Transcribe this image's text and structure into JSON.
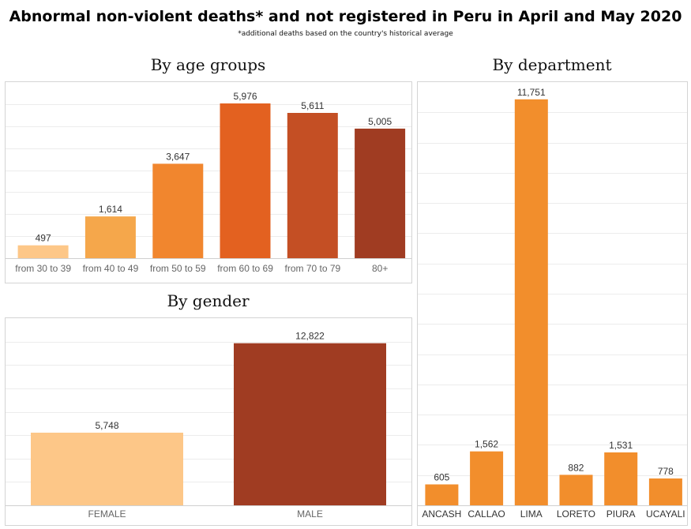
{
  "title": "Abnormal non-violent deaths* and not registered in Peru in April and May 2020",
  "subtitle": "*additional deaths based on the country's historical average",
  "chart_data": [
    {
      "id": "age",
      "type": "bar",
      "title": "By age groups",
      "categories": [
        "from 30 to 39",
        "from 40 to 49",
        "from 50 to 59",
        "from 60 to 69",
        "from 70 to 79",
        "80+"
      ],
      "values": [
        497,
        1614,
        3647,
        5976,
        5611,
        5005
      ],
      "value_labels": [
        "497",
        "1,614",
        "3,647",
        "5,976",
        "5,611",
        "5,005"
      ],
      "colors": [
        "#fdc788",
        "#f5a74b",
        "#f1862e",
        "#e36120",
        "#c44f24",
        "#a03c22"
      ],
      "ylim": [
        0,
        6800
      ],
      "grid": true
    },
    {
      "id": "gender",
      "type": "bar",
      "title": "By gender",
      "categories": [
        "FEMALE",
        "MALE"
      ],
      "values": [
        5748,
        12822
      ],
      "value_labels": [
        "5,748",
        "12,822"
      ],
      "colors": [
        "#fdc788",
        "#a03c22"
      ],
      "ylim": [
        0,
        14800
      ],
      "grid": true
    },
    {
      "id": "department",
      "type": "bar",
      "title": "By department",
      "categories": [
        "ANCASH",
        "CALLAO",
        "LIMA",
        "LORETO",
        "PIURA",
        "UCAYALI"
      ],
      "values": [
        605,
        1562,
        11751,
        882,
        1531,
        778
      ],
      "value_labels": [
        "605",
        "1,562",
        "11,751",
        "882",
        "1,531",
        "778"
      ],
      "colors": [
        "#f28e2c",
        "#f28e2c",
        "#f28e2c",
        "#f28e2c",
        "#f28e2c",
        "#f28e2c"
      ],
      "ylim": [
        0,
        12250
      ],
      "grid": true
    }
  ]
}
